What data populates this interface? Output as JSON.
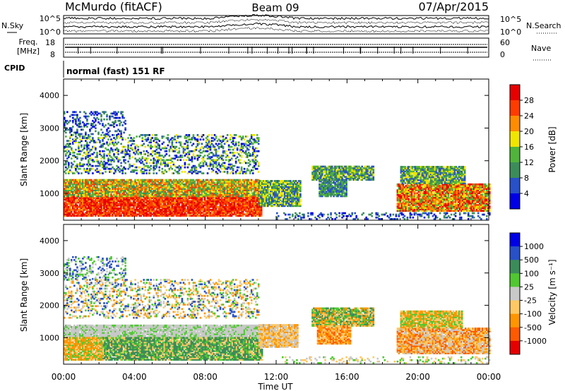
{
  "header": {
    "station": "McMurdo (fitACF)",
    "beam": "Beam 09",
    "date": "07/Apr/2015"
  },
  "noise_panel": {
    "left_label": "N.Sky",
    "right_label": "N.Search",
    "left_ticks": [
      "10^5",
      "10^0"
    ],
    "right_ticks": [
      "10^5",
      "10^0"
    ]
  },
  "freq_panel": {
    "left_label_1": "Freq.",
    "left_label_2": "[MHz]",
    "right_label": "Nave",
    "left_ticks": [
      "18",
      "8"
    ],
    "right_ticks": [
      "60",
      "0"
    ]
  },
  "cpid": {
    "label": "CPID",
    "value": "normal (fast) 151 RF"
  },
  "colors": {
    "power_scale": [
      "#0000e6",
      "#2850c8",
      "#3c8c5a",
      "#50b43c",
      "#f0e600",
      "#ff8c00",
      "#ff3c00",
      "#e60000"
    ],
    "velocity_scale": [
      "#e60000",
      "#ff5a00",
      "#ff9600",
      "#ffc864",
      "#c8c8c8",
      "#50c832",
      "#3c8c5a",
      "#2850c8",
      "#0000e6"
    ],
    "axis": "#000000"
  },
  "chart_data": [
    {
      "type": "heatmap",
      "title": "Power",
      "ylabel": "Slant Range [km]",
      "xlabel": "",
      "x_ticks": [
        "00:00",
        "04:00",
        "08:00",
        "12:00",
        "16:00",
        "20:00",
        "00:00"
      ],
      "y_ticks": [
        "1000",
        "2000",
        "3000",
        "4000"
      ],
      "ylim": [
        180,
        4500
      ],
      "colorbar": {
        "label": "Power [dB]",
        "ticks": [
          "4",
          "8",
          "12",
          "16",
          "20",
          "24",
          "28"
        ]
      }
    },
    {
      "type": "heatmap",
      "title": "Velocity",
      "ylabel": "Slant Range [km]",
      "xlabel": "Time UT",
      "x_ticks": [
        "00:00",
        "04:00",
        "08:00",
        "12:00",
        "16:00",
        "20:00",
        "00:00"
      ],
      "y_ticks": [
        "1000",
        "2000",
        "3000",
        "4000"
      ],
      "ylim": [
        180,
        4500
      ],
      "colorbar": {
        "label": "Velocity [m s⁻¹]",
        "ticks": [
          "1000",
          "500",
          "100",
          "25",
          "-25",
          "-100",
          "-500",
          "-1000"
        ]
      }
    }
  ]
}
